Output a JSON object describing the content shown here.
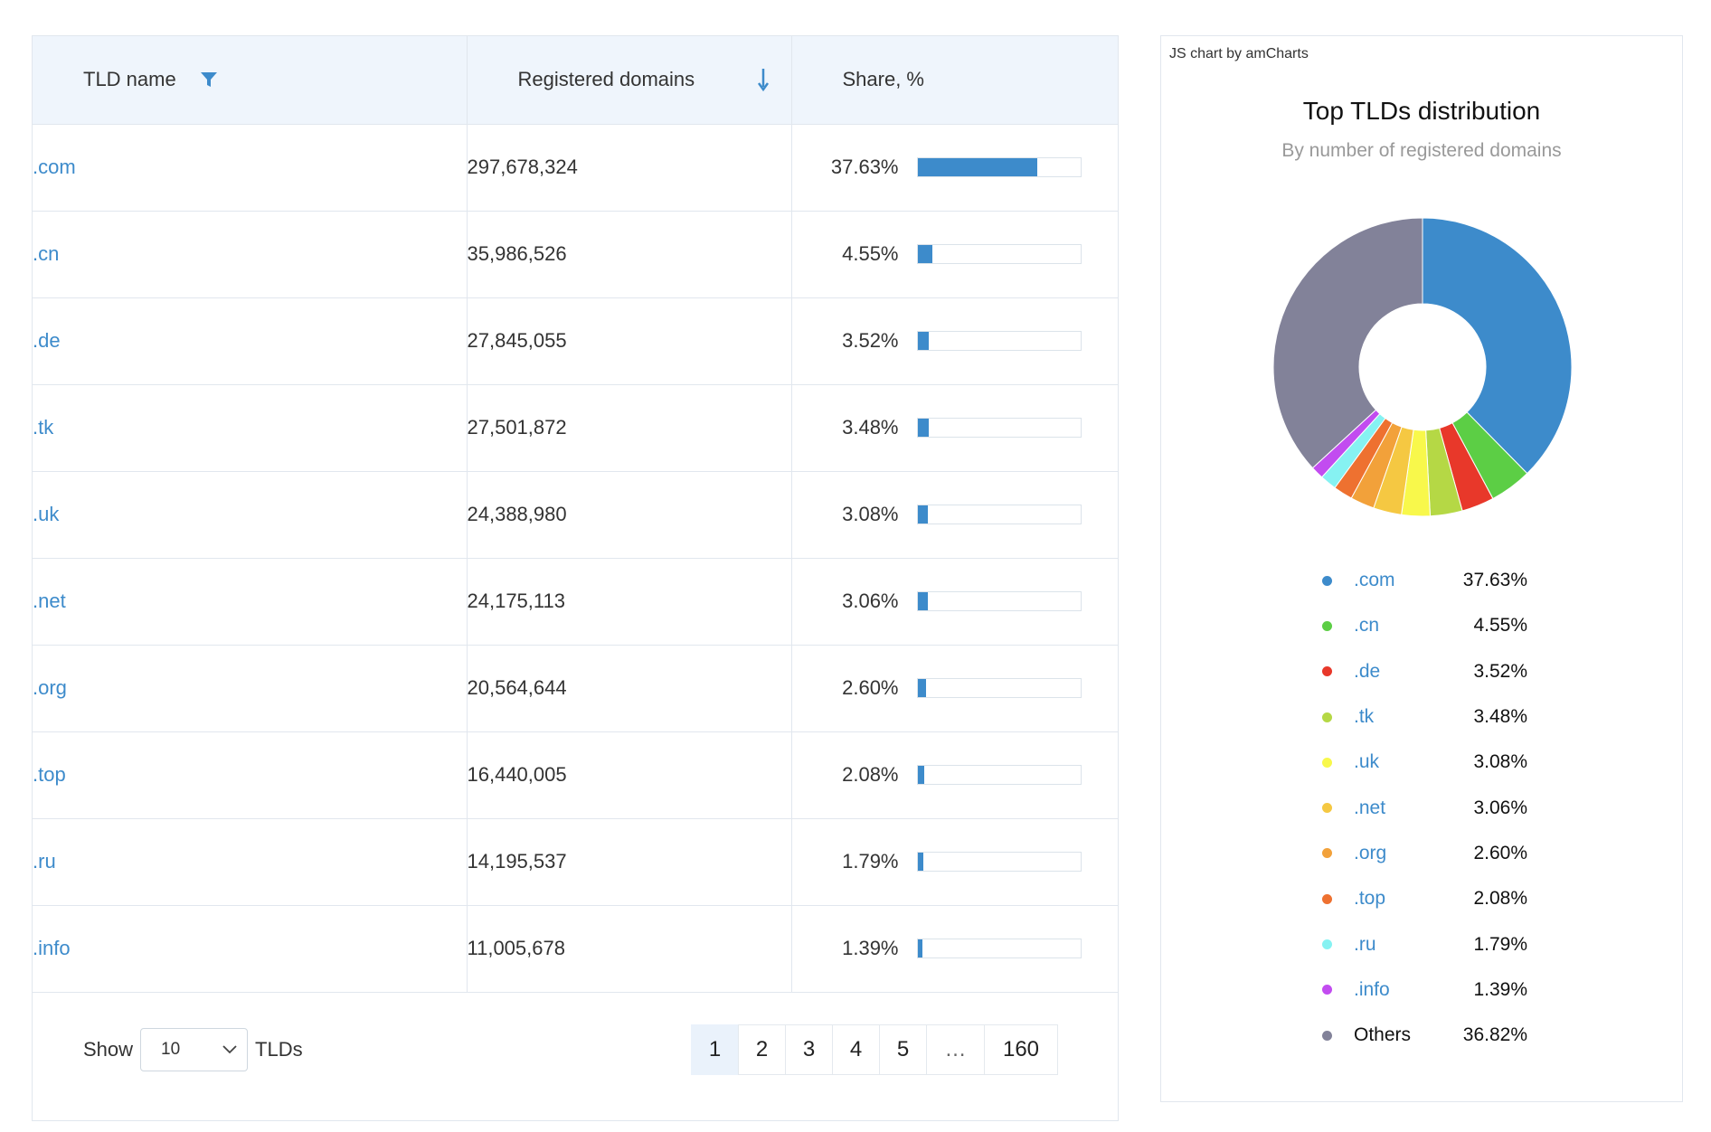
{
  "table": {
    "headers": {
      "tld_name": "TLD name",
      "registered_domains": "Registered domains",
      "share": "Share, %"
    },
    "rows": [
      {
        "tld": ".com",
        "domains": "297,678,324",
        "share": "37.63%",
        "share_value": 37.63
      },
      {
        "tld": ".cn",
        "domains": "35,986,526",
        "share": "4.55%",
        "share_value": 4.55
      },
      {
        "tld": ".de",
        "domains": "27,845,055",
        "share": "3.52%",
        "share_value": 3.52
      },
      {
        "tld": ".tk",
        "domains": "27,501,872",
        "share": "3.48%",
        "share_value": 3.48
      },
      {
        "tld": ".uk",
        "domains": "24,388,980",
        "share": "3.08%",
        "share_value": 3.08
      },
      {
        "tld": ".net",
        "domains": "24,175,113",
        "share": "3.06%",
        "share_value": 3.06
      },
      {
        "tld": ".org",
        "domains": "20,564,644",
        "share": "2.60%",
        "share_value": 2.6
      },
      {
        "tld": ".top",
        "domains": "16,440,005",
        "share": "2.08%",
        "share_value": 2.08
      },
      {
        "tld": ".ru",
        "domains": "14,195,537",
        "share": "1.79%",
        "share_value": 1.79
      },
      {
        "tld": ".info",
        "domains": "11,005,678",
        "share": "1.39%",
        "share_value": 1.39
      }
    ],
    "footer": {
      "show_label": "Show",
      "page_size": "10",
      "tlds_label": "TLDs",
      "pages": [
        "1",
        "2",
        "3",
        "4",
        "5",
        "…",
        "160"
      ],
      "active_page": "1"
    }
  },
  "chart": {
    "credit": "JS chart by amCharts",
    "title": "Top TLDs distribution",
    "subtitle": "By number of registered domains"
  },
  "chart_data": {
    "type": "pie",
    "title": "Top TLDs distribution",
    "subtitle": "By number of registered domains",
    "legend_position": "bottom",
    "categories": [
      ".com",
      ".cn",
      ".de",
      ".tk",
      ".uk",
      ".net",
      ".org",
      ".top",
      ".ru",
      ".info",
      "Others"
    ],
    "values": [
      37.63,
      4.55,
      3.52,
      3.48,
      3.08,
      3.06,
      2.6,
      2.08,
      1.79,
      1.39,
      36.82
    ],
    "labels": [
      "37.63%",
      "4.55%",
      "3.52%",
      "3.48%",
      "3.08%",
      "3.06%",
      "2.60%",
      "2.08%",
      "1.79%",
      "1.39%",
      "36.82%"
    ],
    "colors": [
      "#3d8bcb",
      "#5cce45",
      "#e8382a",
      "#b5d845",
      "#f8f84b",
      "#f5c842",
      "#f2a13a",
      "#ee7130",
      "#86f2f2",
      "#c24cf0",
      "#828299"
    ]
  },
  "colors": {
    "accent": "#3d8bcb",
    "header_bg": "#eff5fc",
    "border": "#e1e7ee"
  }
}
